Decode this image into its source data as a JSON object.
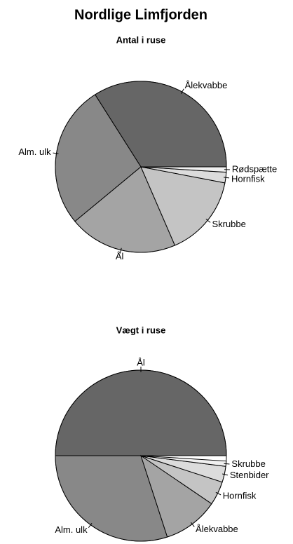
{
  "title": "Nordlige Limfjorden",
  "chart_data": [
    {
      "type": "pie",
      "title": "Antal i ruse",
      "categories": [
        "Ålekvabbe",
        "Alm. ulk",
        "Ål",
        "Skrubbe",
        "Hornfisk",
        "Rødspætte"
      ],
      "values": [
        34,
        27,
        20.5,
        15.5,
        2,
        1
      ],
      "colors": [
        "#666666",
        "#888888",
        "#a4a4a4",
        "#c4c4c4",
        "#dcdcdc",
        "#f0f0f0"
      ]
    },
    {
      "type": "pie",
      "title": "Vægt i ruse",
      "categories": [
        "Ål",
        "Alm. ulk",
        "Ålekvabbe",
        "Hornfisk",
        "Stenbider",
        "Skrubbe"
      ],
      "values": [
        50,
        30,
        10.5,
        4.5,
        3,
        1
      ],
      "colors": [
        "#666666",
        "#888888",
        "#a4a4a4",
        "#c4c4c4",
        "#dcdcdc",
        "#f0f0f0"
      ]
    }
  ]
}
